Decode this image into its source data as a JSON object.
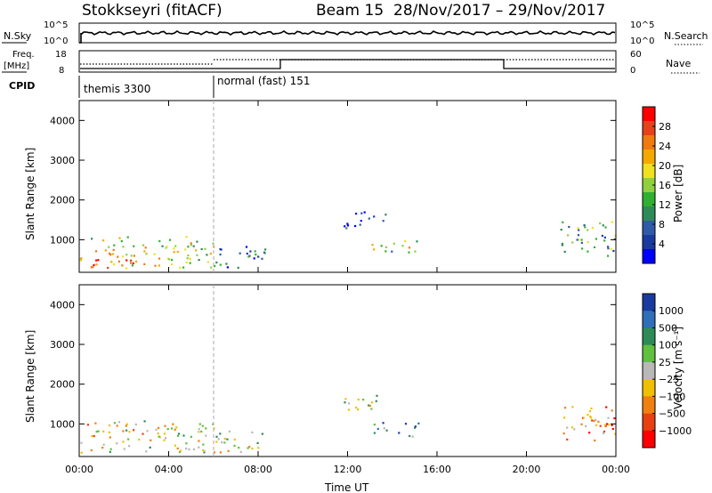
{
  "header": {
    "station": "Stokkseyri (fitACF)",
    "beam": "Beam 15",
    "dates": "28/Nov/2017 – 29/Nov/2017"
  },
  "top_panels": {
    "nsky_label": "N.Sky",
    "nsky_ticks": [
      "10^5",
      "10^0"
    ],
    "nsearch_label": "N.Search",
    "nsearch_ticks": [
      "10^5",
      "10^0"
    ],
    "freq_label_1": "Freq.",
    "freq_label_2": "[MHz]",
    "freq_ticks": [
      "18",
      "8"
    ],
    "nave_label": "Nave",
    "nave_ticks": [
      "60",
      "0"
    ],
    "cpid_label": "CPID",
    "cpid_modes": [
      "themis 3300",
      "normal (fast) 151"
    ]
  },
  "chart_data": [
    {
      "type": "heatmap",
      "name": "power",
      "ylabel": "Slant Range [km]",
      "yticks": [
        "1000",
        "2000",
        "3000",
        "4000"
      ],
      "ylim": [
        180,
        4500
      ],
      "xticks": [
        "00:00",
        "04:00",
        "08:00",
        "12:00",
        "16:00",
        "20:00",
        "00:00"
      ],
      "xlim_hours": [
        0,
        24
      ],
      "colorbar_label": "Power [dB]",
      "colorbar_ticks": [
        "28",
        "24",
        "20",
        "16",
        "12",
        "8",
        "4"
      ],
      "colorbar_colors": [
        "#ff0000",
        "#e8401a",
        "#f07a10",
        "#f5a800",
        "#f0e020",
        "#90d040",
        "#30b030",
        "#2e8b57",
        "#2f5aa8",
        "#1a3aa0",
        "#0000ff"
      ],
      "echo_regions": [
        {
          "t": [
            0.0,
            6.0
          ],
          "r": [
            300,
            1100
          ],
          "level": 0.55
        },
        {
          "t": [
            0.0,
            2.5
          ],
          "r": [
            300,
            550
          ],
          "level": 0.95
        },
        {
          "t": [
            6.0,
            8.3
          ],
          "r": [
            300,
            900
          ],
          "level": 0.2
        },
        {
          "t": [
            11.8,
            13.7
          ],
          "r": [
            1300,
            1750
          ],
          "level": 0.15
        },
        {
          "t": [
            13.0,
            15.2
          ],
          "r": [
            700,
            1050
          ],
          "level": 0.5
        },
        {
          "t": [
            21.5,
            24.0
          ],
          "r": [
            600,
            1500
          ],
          "level": 0.4
        }
      ]
    },
    {
      "type": "heatmap",
      "name": "velocity",
      "ylabel": "Slant Range [km]",
      "yticks": [
        "1000",
        "2000",
        "3000",
        "4000"
      ],
      "ylim": [
        180,
        4500
      ],
      "xticks": [
        "00:00",
        "04:00",
        "08:00",
        "12:00",
        "16:00",
        "20:00",
        "00:00"
      ],
      "xlabel": "Time UT",
      "xlim_hours": [
        0,
        24
      ],
      "colorbar_label": "Velocity [m s⁻¹]",
      "colorbar_ticks": [
        "1000",
        "500",
        "100",
        "25",
        "−25",
        "−100",
        "−500",
        "−1000"
      ],
      "colorbar_colors": [
        "#1a3aa0",
        "#2f6eb8",
        "#2e8b57",
        "#60c040",
        "#b8b8b8",
        "#f0c000",
        "#f08010",
        "#e84010",
        "#ff0000"
      ],
      "echo_regions": [
        {
          "t": [
            0.0,
            6.0
          ],
          "r": [
            300,
            1100
          ],
          "level": 0.45
        },
        {
          "t": [
            6.0,
            8.3
          ],
          "r": [
            300,
            900
          ],
          "level": 0.5
        },
        {
          "t": [
            11.8,
            13.7
          ],
          "r": [
            1300,
            1750
          ],
          "level": 0.55
        },
        {
          "t": [
            13.0,
            15.2
          ],
          "r": [
            700,
            1050
          ],
          "level": 0.75
        },
        {
          "t": [
            21.5,
            24.0
          ],
          "r": [
            600,
            1500
          ],
          "level": 0.3
        }
      ]
    }
  ]
}
